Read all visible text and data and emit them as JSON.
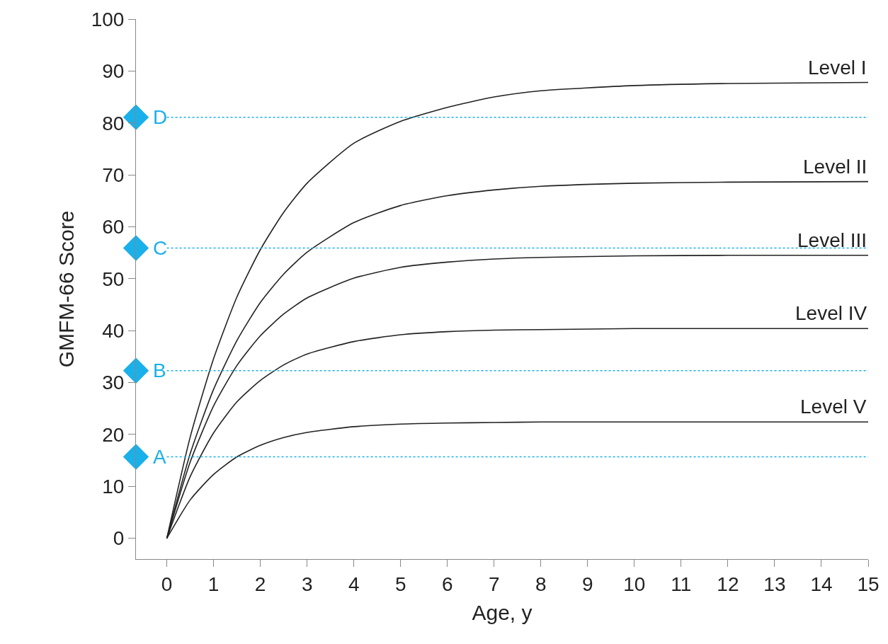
{
  "chart_data": {
    "type": "line",
    "xlabel": "Age, y",
    "ylabel": "GMFM-66 Score",
    "x": [
      0,
      0.5,
      1,
      1.5,
      2,
      2.5,
      3,
      4,
      5,
      6,
      7,
      8,
      10,
      12,
      15
    ],
    "series": [
      {
        "name": "Level I",
        "color": "#222222",
        "values": [
          0,
          19.5,
          34.6,
          46.5,
          55.6,
          62.8,
          68.4,
          76.1,
          80.3,
          83.0,
          85.0,
          86.2,
          87.2,
          87.6,
          87.8
        ]
      },
      {
        "name": "Level II",
        "color": "#222222",
        "values": [
          0,
          16.3,
          28.7,
          38.1,
          45.4,
          50.9,
          55.1,
          60.8,
          64.1,
          66.0,
          67.1,
          67.8,
          68.4,
          68.6,
          68.7
        ]
      },
      {
        "name": "Level III",
        "color": "#222222",
        "values": [
          0,
          14.7,
          25.5,
          33.3,
          39.0,
          43.2,
          46.3,
          50.1,
          52.2,
          53.2,
          53.8,
          54.1,
          54.4,
          54.5,
          54.5
        ]
      },
      {
        "name": "Level IV",
        "color": "#222222",
        "values": [
          0,
          11.9,
          20.3,
          26.3,
          30.4,
          33.4,
          35.5,
          37.9,
          39.2,
          39.8,
          40.1,
          40.2,
          40.4,
          40.4,
          40.4
        ]
      },
      {
        "name": "Level V",
        "color": "#222222",
        "values": [
          0,
          7.4,
          12.3,
          15.7,
          17.9,
          19.4,
          20.4,
          21.5,
          22.0,
          22.2,
          22.3,
          22.4,
          22.4,
          22.4,
          22.4
        ]
      }
    ],
    "ref_lines": [
      {
        "axis": "y",
        "value": 81.1,
        "label": "D",
        "color": "#1ab0ea",
        "line_style": "dotted"
      },
      {
        "axis": "y",
        "value": 55.9,
        "label": "C",
        "color": "#1ab0ea",
        "line_style": "dotted"
      },
      {
        "axis": "y",
        "value": 32.3,
        "label": "B",
        "color": "#1ab0ea",
        "line_style": "dotted"
      },
      {
        "axis": "y",
        "value": 15.7,
        "label": "A",
        "color": "#1ab0ea",
        "line_style": "dotted"
      }
    ],
    "xlim": [
      -0.66,
      15
    ],
    "ylim": [
      -4,
      100
    ],
    "xticks": [
      0,
      1,
      2,
      3,
      4,
      5,
      6,
      7,
      8,
      9,
      10,
      11,
      12,
      13,
      14,
      15
    ],
    "yticks": [
      0,
      10,
      20,
      30,
      40,
      50,
      60,
      70,
      80,
      90,
      100
    ],
    "legend": false,
    "marker": "none",
    "line_style": "solid"
  }
}
